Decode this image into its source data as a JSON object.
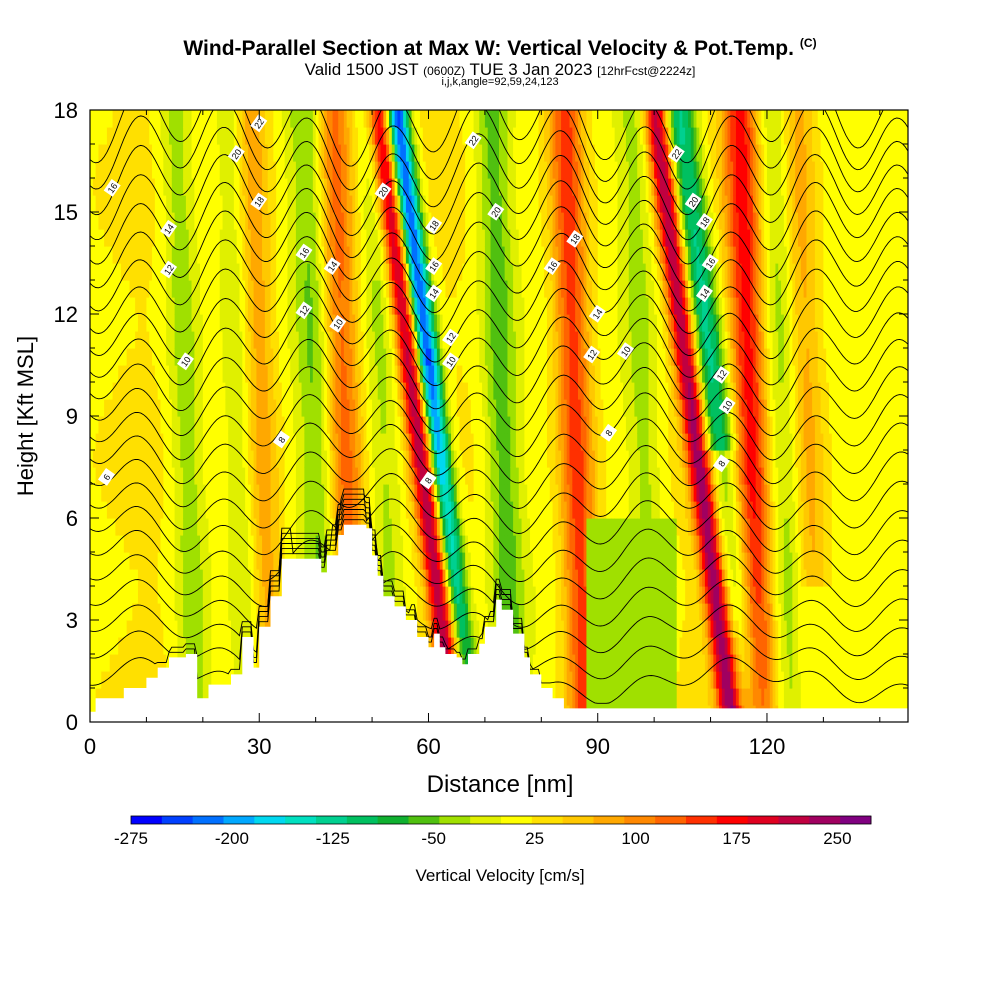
{
  "header": {
    "title": "Wind-Parallel Section at Max W: Vertical Velocity & Pot.Temp.",
    "title_mark": "(C)",
    "subtitle_main": "Valid 1500 JST",
    "subtitle_utc": "(0600Z)",
    "subtitle_date": "TUE 3 Jan 2023",
    "subtitle_fcst": "[12hrFcst@2224z]",
    "grid_info": "i,j,k,angle=92,59,24,123"
  },
  "chart_data": {
    "type": "heatmap",
    "xlabel": "Distance [nm]",
    "ylabel": "Height [Kft MSL]",
    "x_range": [
      0,
      145
    ],
    "y_range": [
      0,
      18
    ],
    "x_ticks": [
      0,
      30,
      60,
      90,
      120
    ],
    "y_ticks": [
      0,
      3,
      6,
      9,
      12,
      15,
      18
    ],
    "colorbar": {
      "label": "Vertical Velocity [cm/s]",
      "min": -275,
      "max": 275,
      "tick_labels": [
        "-275",
        "-200",
        "-125",
        "-50",
        "25",
        "100",
        "175",
        "250"
      ],
      "tick_values": [
        -275,
        -200,
        -125,
        -50,
        25,
        100,
        175,
        250
      ],
      "colors": [
        "#0000ff",
        "#0040ff",
        "#0070ff",
        "#00a8ff",
        "#00d8f0",
        "#00e0c0",
        "#00d090",
        "#00c060",
        "#10b030",
        "#50c010",
        "#a0e000",
        "#e0f000",
        "#ffff00",
        "#ffe000",
        "#ffc800",
        "#ffa800",
        "#ff8800",
        "#ff6400",
        "#ff3000",
        "#ff0000",
        "#e00020",
        "#c00040",
        "#a00060",
        "#800080"
      ]
    },
    "updraft_columns": [
      {
        "x": 30,
        "w": 85
      },
      {
        "x": 45,
        "w": 110
      },
      {
        "x": 58,
        "w": 220
      },
      {
        "x": 86,
        "w": 140
      },
      {
        "x": 107,
        "w": 230
      },
      {
        "x": 117,
        "w": 150
      },
      {
        "x": 127,
        "w": 70
      }
    ],
    "downdraft_columns": [
      {
        "x": 17,
        "w": -60
      },
      {
        "x": 27,
        "w": -50
      },
      {
        "x": 40,
        "w": -60
      },
      {
        "x": 52,
        "w": -50
      },
      {
        "x": 61,
        "w": -275
      },
      {
        "x": 73,
        "w": -75
      },
      {
        "x": 98,
        "w": -50
      },
      {
        "x": 111,
        "w": -150
      },
      {
        "x": 123,
        "w": -55
      }
    ],
    "terrain_heights_kft": [
      [
        0,
        0.3
      ],
      [
        1,
        0.7
      ],
      [
        6,
        1.0
      ],
      [
        10,
        1.3
      ],
      [
        12,
        1.6
      ],
      [
        14,
        1.9
      ],
      [
        17,
        2.0
      ],
      [
        19,
        0.7
      ],
      [
        21,
        1.1
      ],
      [
        25,
        1.4
      ],
      [
        27,
        2.5
      ],
      [
        29,
        1.6
      ],
      [
        30,
        2.8
      ],
      [
        32,
        3.7
      ],
      [
        34,
        4.8
      ],
      [
        39,
        4.8
      ],
      [
        41,
        4.4
      ],
      [
        42,
        4.9
      ],
      [
        44,
        5.5
      ],
      [
        45,
        5.8
      ],
      [
        49,
        5.7
      ],
      [
        50,
        4.9
      ],
      [
        51,
        4.3
      ],
      [
        52,
        3.7
      ],
      [
        54,
        3.4
      ],
      [
        56,
        3.0
      ],
      [
        58,
        2.5
      ],
      [
        60,
        2.2
      ],
      [
        61,
        2.6
      ],
      [
        62,
        2.2
      ],
      [
        63,
        2.0
      ],
      [
        65,
        1.9
      ],
      [
        66,
        1.7
      ],
      [
        67,
        2.0
      ],
      [
        69,
        2.3
      ],
      [
        70,
        2.8
      ],
      [
        72,
        3.6
      ],
      [
        73,
        3.3
      ],
      [
        75,
        2.6
      ],
      [
        77,
        1.9
      ],
      [
        78,
        1.4
      ],
      [
        80,
        1.0
      ],
      [
        82,
        0.7
      ],
      [
        84,
        0.4
      ],
      [
        90,
        0.4
      ],
      [
        145,
        0.4
      ]
    ],
    "potential_temperature_labels": [
      {
        "value": "6",
        "x": 3,
        "y": 7.2
      },
      {
        "value": "8",
        "x": 34,
        "y": 8.3
      },
      {
        "value": "8",
        "x": 60,
        "y": 7.1
      },
      {
        "value": "8",
        "x": 92,
        "y": 8.5
      },
      {
        "value": "8",
        "x": 112,
        "y": 7.6
      },
      {
        "value": "10",
        "x": 17,
        "y": 10.6
      },
      {
        "value": "10",
        "x": 44,
        "y": 11.7
      },
      {
        "value": "10",
        "x": 64,
        "y": 10.6
      },
      {
        "value": "10",
        "x": 95,
        "y": 10.9
      },
      {
        "value": "10",
        "x": 113,
        "y": 9.3
      },
      {
        "value": "12",
        "x": 14,
        "y": 13.3
      },
      {
        "value": "12",
        "x": 38,
        "y": 12.1
      },
      {
        "value": "12",
        "x": 64,
        "y": 11.3
      },
      {
        "value": "12",
        "x": 89,
        "y": 10.8
      },
      {
        "value": "12",
        "x": 112,
        "y": 10.2
      },
      {
        "value": "14",
        "x": 14,
        "y": 14.5
      },
      {
        "value": "14",
        "x": 43,
        "y": 13.4
      },
      {
        "value": "14",
        "x": 61,
        "y": 12.6
      },
      {
        "value": "14",
        "x": 90,
        "y": 12.0
      },
      {
        "value": "14",
        "x": 109,
        "y": 12.6
      },
      {
        "value": "16",
        "x": 4,
        "y": 15.7
      },
      {
        "value": "16",
        "x": 38,
        "y": 13.8
      },
      {
        "value": "16",
        "x": 61,
        "y": 13.4
      },
      {
        "value": "16",
        "x": 82,
        "y": 13.4
      },
      {
        "value": "16",
        "x": 110,
        "y": 13.5
      },
      {
        "value": "18",
        "x": 30,
        "y": 15.3
      },
      {
        "value": "18",
        "x": 61,
        "y": 14.6
      },
      {
        "value": "18",
        "x": 86,
        "y": 14.2
      },
      {
        "value": "18",
        "x": 109,
        "y": 14.7
      },
      {
        "value": "20",
        "x": 26,
        "y": 16.7
      },
      {
        "value": "20",
        "x": 52,
        "y": 15.6
      },
      {
        "value": "20",
        "x": 72,
        "y": 15.0
      },
      {
        "value": "20",
        "x": 107,
        "y": 15.3
      },
      {
        "value": "22",
        "x": 30,
        "y": 17.6
      },
      {
        "value": "22",
        "x": 68,
        "y": 17.1
      },
      {
        "value": "22",
        "x": 104,
        "y": 16.7
      }
    ]
  }
}
